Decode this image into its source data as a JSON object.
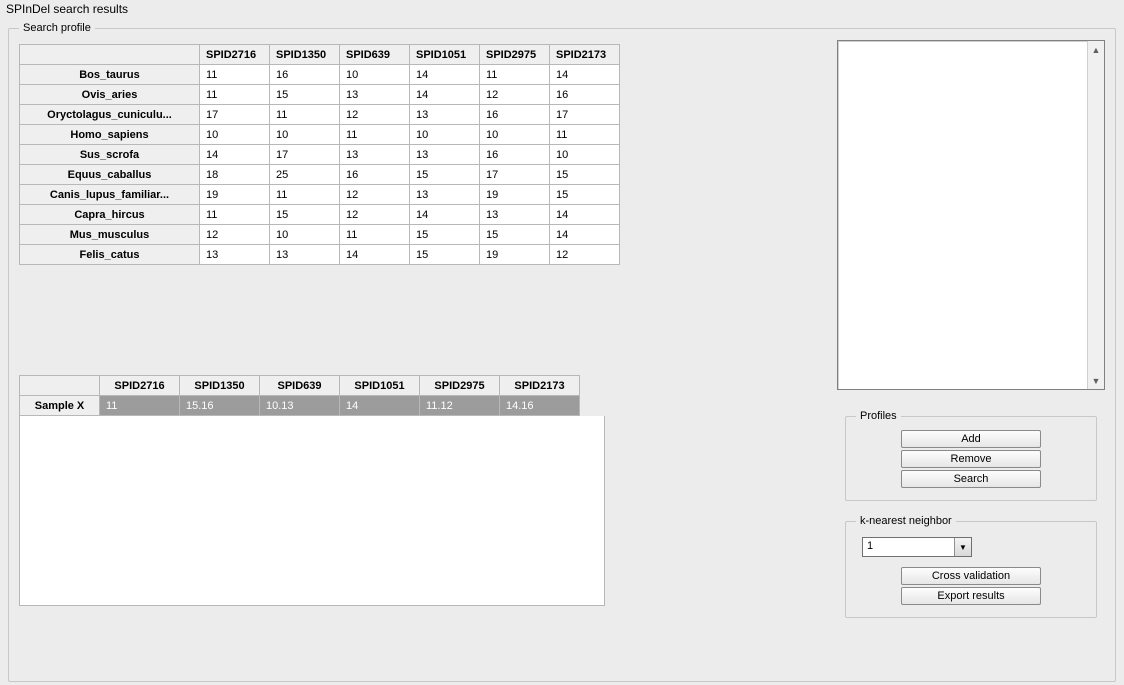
{
  "window": {
    "title": "SPInDel search results"
  },
  "search_profile": {
    "legend": "Search profile",
    "columns": [
      "SPID2716",
      "SPID1350",
      "SPID639",
      "SPID1051",
      "SPID2975",
      "SPID2173"
    ],
    "rows": [
      {
        "label": "Bos_taurus",
        "vals": [
          "11",
          "16",
          "10",
          "14",
          "11",
          "14"
        ]
      },
      {
        "label": "Ovis_aries",
        "vals": [
          "11",
          "15",
          "13",
          "14",
          "12",
          "16"
        ]
      },
      {
        "label": "Oryctolagus_cuniculu...",
        "vals": [
          "17",
          "11",
          "12",
          "13",
          "16",
          "17"
        ]
      },
      {
        "label": "Homo_sapiens",
        "vals": [
          "10",
          "10",
          "11",
          "10",
          "10",
          "11"
        ]
      },
      {
        "label": "Sus_scrofa",
        "vals": [
          "14",
          "17",
          "13",
          "13",
          "16",
          "10"
        ]
      },
      {
        "label": "Equus_caballus",
        "vals": [
          "18",
          "25",
          "16",
          "15",
          "17",
          "15"
        ]
      },
      {
        "label": "Canis_lupus_familiar...",
        "vals": [
          "19",
          "11",
          "12",
          "13",
          "19",
          "15"
        ]
      },
      {
        "label": "Capra_hircus",
        "vals": [
          "11",
          "15",
          "12",
          "14",
          "13",
          "14"
        ]
      },
      {
        "label": "Mus_musculus",
        "vals": [
          "12",
          "10",
          "11",
          "15",
          "15",
          "14"
        ]
      },
      {
        "label": "Felis_catus",
        "vals": [
          "13",
          "13",
          "14",
          "15",
          "19",
          "12"
        ]
      }
    ]
  },
  "sample_table": {
    "columns": [
      "SPID2716",
      "SPID1350",
      "SPID639",
      "SPID1051",
      "SPID2975",
      "SPID2173"
    ],
    "row_label": "Sample X",
    "row_vals": [
      "11",
      "15.16",
      "10.13",
      "14",
      "11.12",
      "14.16"
    ]
  },
  "profiles_box": {
    "legend": "Profiles",
    "add": "Add",
    "remove": "Remove",
    "search": "Search"
  },
  "knn_box": {
    "legend": "k-nearest neighbor",
    "value": "1",
    "cross": "Cross validation",
    "export": "Export results"
  }
}
